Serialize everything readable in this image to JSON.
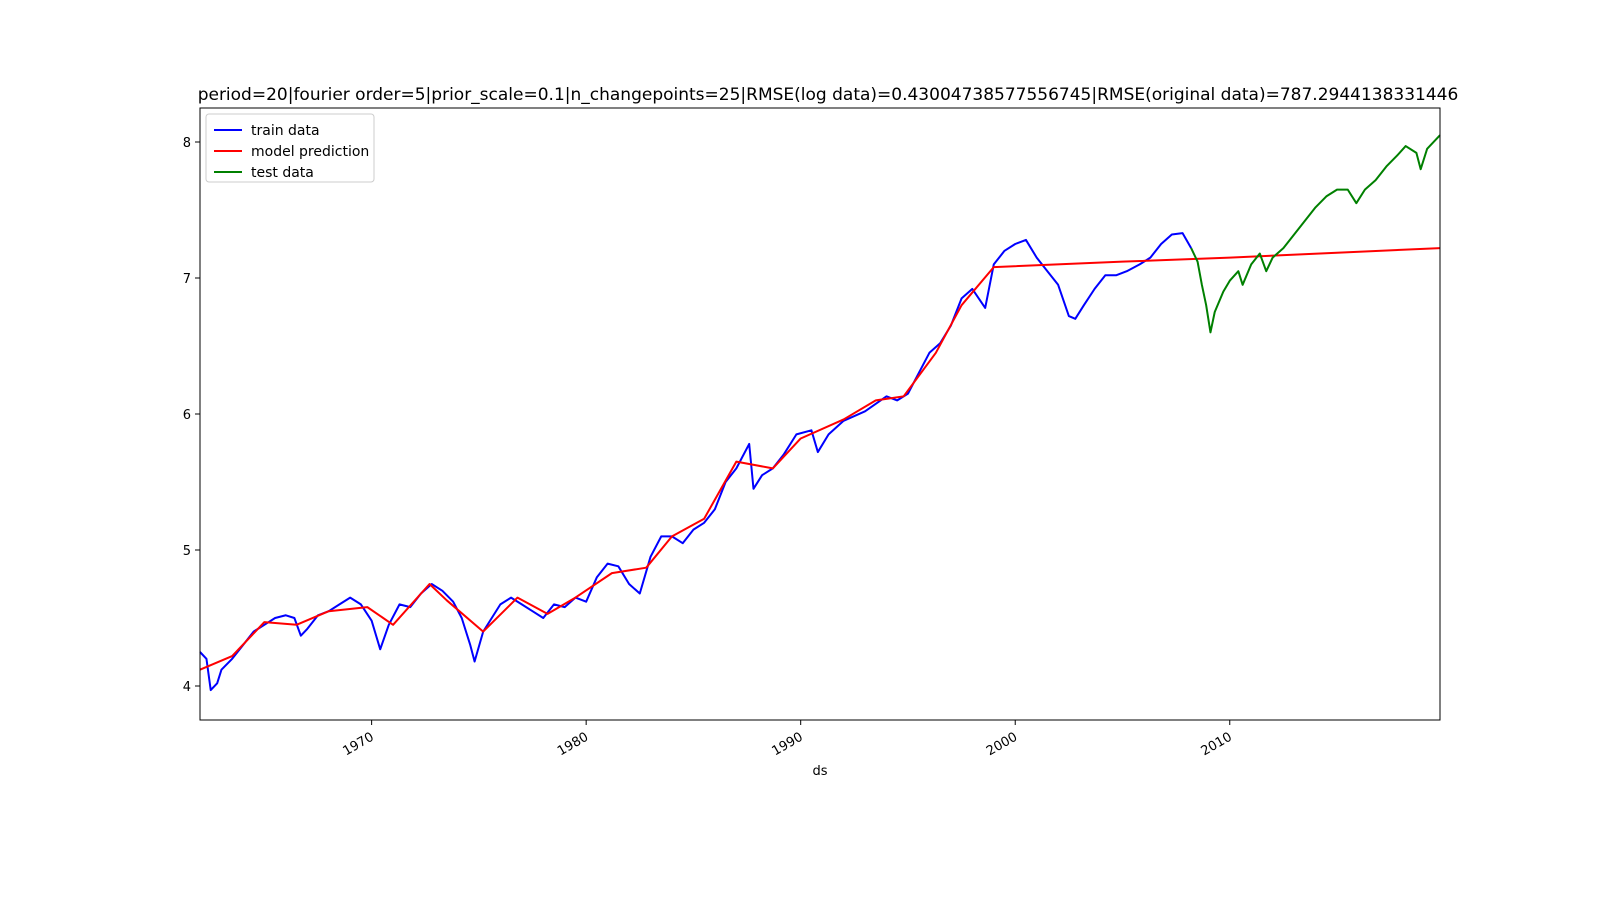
{
  "chart_data": {
    "type": "line",
    "title": "period=20|fourier order=5|prior_scale=0.1|n_changepoints=25|RMSE(log data)=0.43004738577556745|RMSE(original  data)=787.2944138331446",
    "xlabel": "ds",
    "ylabel": "",
    "xlim": [
      1962.0,
      2019.8
    ],
    "ylim": [
      3.75,
      8.25
    ],
    "x_ticks": [
      1970,
      1980,
      1990,
      2000,
      2010
    ],
    "x_tick_labels": [
      "1970",
      "1980",
      "1990",
      "2000",
      "2010"
    ],
    "y_ticks": [
      4,
      5,
      6,
      7,
      8
    ],
    "y_tick_labels": [
      "4",
      "5",
      "6",
      "7",
      "8"
    ],
    "grid": false,
    "legend_position": "top-left",
    "series": [
      {
        "name": "train data",
        "color": "#0000ff",
        "points": [
          [
            1962.0,
            4.25
          ],
          [
            1962.3,
            4.2
          ],
          [
            1962.5,
            3.97
          ],
          [
            1962.8,
            4.02
          ],
          [
            1963.0,
            4.12
          ],
          [
            1963.5,
            4.2
          ],
          [
            1964.0,
            4.3
          ],
          [
            1964.5,
            4.4
          ],
          [
            1965.0,
            4.45
          ],
          [
            1965.5,
            4.5
          ],
          [
            1966.0,
            4.52
          ],
          [
            1966.4,
            4.5
          ],
          [
            1966.7,
            4.37
          ],
          [
            1967.0,
            4.42
          ],
          [
            1967.5,
            4.52
          ],
          [
            1968.0,
            4.55
          ],
          [
            1968.5,
            4.6
          ],
          [
            1969.0,
            4.65
          ],
          [
            1969.5,
            4.6
          ],
          [
            1970.0,
            4.48
          ],
          [
            1970.4,
            4.27
          ],
          [
            1970.8,
            4.45
          ],
          [
            1971.3,
            4.6
          ],
          [
            1971.8,
            4.58
          ],
          [
            1972.3,
            4.68
          ],
          [
            1972.8,
            4.75
          ],
          [
            1973.3,
            4.7
          ],
          [
            1973.8,
            4.62
          ],
          [
            1974.2,
            4.5
          ],
          [
            1974.6,
            4.3
          ],
          [
            1974.8,
            4.18
          ],
          [
            1975.2,
            4.4
          ],
          [
            1975.6,
            4.5
          ],
          [
            1976.0,
            4.6
          ],
          [
            1976.5,
            4.65
          ],
          [
            1977.0,
            4.6
          ],
          [
            1977.5,
            4.55
          ],
          [
            1978.0,
            4.5
          ],
          [
            1978.5,
            4.6
          ],
          [
            1979.0,
            4.58
          ],
          [
            1979.5,
            4.65
          ],
          [
            1980.0,
            4.62
          ],
          [
            1980.5,
            4.8
          ],
          [
            1981.0,
            4.9
          ],
          [
            1981.5,
            4.88
          ],
          [
            1982.0,
            4.75
          ],
          [
            1982.5,
            4.68
          ],
          [
            1983.0,
            4.95
          ],
          [
            1983.5,
            5.1
          ],
          [
            1984.0,
            5.1
          ],
          [
            1984.5,
            5.05
          ],
          [
            1985.0,
            5.15
          ],
          [
            1985.5,
            5.2
          ],
          [
            1986.0,
            5.3
          ],
          [
            1986.5,
            5.5
          ],
          [
            1987.0,
            5.6
          ],
          [
            1987.6,
            5.78
          ],
          [
            1987.8,
            5.45
          ],
          [
            1988.2,
            5.55
          ],
          [
            1988.7,
            5.6
          ],
          [
            1989.2,
            5.7
          ],
          [
            1989.8,
            5.85
          ],
          [
            1990.5,
            5.88
          ],
          [
            1990.8,
            5.72
          ],
          [
            1991.3,
            5.85
          ],
          [
            1992.0,
            5.95
          ],
          [
            1993.0,
            6.02
          ],
          [
            1994.0,
            6.13
          ],
          [
            1994.5,
            6.1
          ],
          [
            1995.0,
            6.15
          ],
          [
            1995.5,
            6.3
          ],
          [
            1996.0,
            6.45
          ],
          [
            1996.5,
            6.52
          ],
          [
            1997.0,
            6.65
          ],
          [
            1997.5,
            6.85
          ],
          [
            1998.0,
            6.92
          ],
          [
            1998.6,
            6.78
          ],
          [
            1999.0,
            7.1
          ],
          [
            1999.5,
            7.2
          ],
          [
            2000.0,
            7.25
          ],
          [
            2000.5,
            7.28
          ],
          [
            2001.0,
            7.15
          ],
          [
            2001.5,
            7.05
          ],
          [
            2002.0,
            6.95
          ],
          [
            2002.5,
            6.72
          ],
          [
            2002.8,
            6.7
          ],
          [
            2003.2,
            6.8
          ],
          [
            2003.7,
            6.92
          ],
          [
            2004.2,
            7.02
          ],
          [
            2004.7,
            7.02
          ],
          [
            2005.2,
            7.05
          ],
          [
            2005.8,
            7.1
          ],
          [
            2006.3,
            7.15
          ],
          [
            2006.8,
            7.25
          ],
          [
            2007.3,
            7.32
          ],
          [
            2007.8,
            7.33
          ],
          [
            2008.2,
            7.22
          ]
        ]
      },
      {
        "name": "model prediction",
        "color": "#ff0000",
        "points": [
          [
            1962.0,
            4.12
          ],
          [
            1963.5,
            4.22
          ],
          [
            1965.0,
            4.47
          ],
          [
            1966.5,
            4.45
          ],
          [
            1968.0,
            4.55
          ],
          [
            1969.8,
            4.58
          ],
          [
            1971.0,
            4.45
          ],
          [
            1972.7,
            4.75
          ],
          [
            1973.5,
            4.63
          ],
          [
            1975.2,
            4.4
          ],
          [
            1976.8,
            4.65
          ],
          [
            1978.2,
            4.53
          ],
          [
            1979.5,
            4.65
          ],
          [
            1981.2,
            4.83
          ],
          [
            1982.8,
            4.87
          ],
          [
            1984.0,
            5.1
          ],
          [
            1985.5,
            5.23
          ],
          [
            1987.0,
            5.65
          ],
          [
            1988.7,
            5.6
          ],
          [
            1990.0,
            5.82
          ],
          [
            1992.0,
            5.96
          ],
          [
            1993.5,
            6.1
          ],
          [
            1994.8,
            6.13
          ],
          [
            1996.3,
            6.45
          ],
          [
            1997.5,
            6.8
          ],
          [
            1999.0,
            7.08
          ],
          [
            2005.0,
            7.12
          ],
          [
            2010.0,
            7.15
          ],
          [
            2019.8,
            7.22
          ]
        ]
      },
      {
        "name": "test data",
        "color": "#008000",
        "points": [
          [
            2008.2,
            7.22
          ],
          [
            2008.5,
            7.12
          ],
          [
            2008.7,
            6.95
          ],
          [
            2008.9,
            6.8
          ],
          [
            2009.1,
            6.6
          ],
          [
            2009.3,
            6.75
          ],
          [
            2009.7,
            6.9
          ],
          [
            2010.0,
            6.98
          ],
          [
            2010.4,
            7.05
          ],
          [
            2010.6,
            6.95
          ],
          [
            2011.0,
            7.1
          ],
          [
            2011.4,
            7.18
          ],
          [
            2011.7,
            7.05
          ],
          [
            2012.0,
            7.15
          ],
          [
            2012.5,
            7.22
          ],
          [
            2013.0,
            7.32
          ],
          [
            2013.5,
            7.42
          ],
          [
            2014.0,
            7.52
          ],
          [
            2014.5,
            7.6
          ],
          [
            2015.0,
            7.65
          ],
          [
            2015.5,
            7.65
          ],
          [
            2015.9,
            7.55
          ],
          [
            2016.3,
            7.65
          ],
          [
            2016.8,
            7.72
          ],
          [
            2017.3,
            7.82
          ],
          [
            2017.8,
            7.9
          ],
          [
            2018.2,
            7.97
          ],
          [
            2018.7,
            7.92
          ],
          [
            2018.9,
            7.8
          ],
          [
            2019.2,
            7.95
          ],
          [
            2019.8,
            8.05
          ]
        ]
      }
    ]
  }
}
